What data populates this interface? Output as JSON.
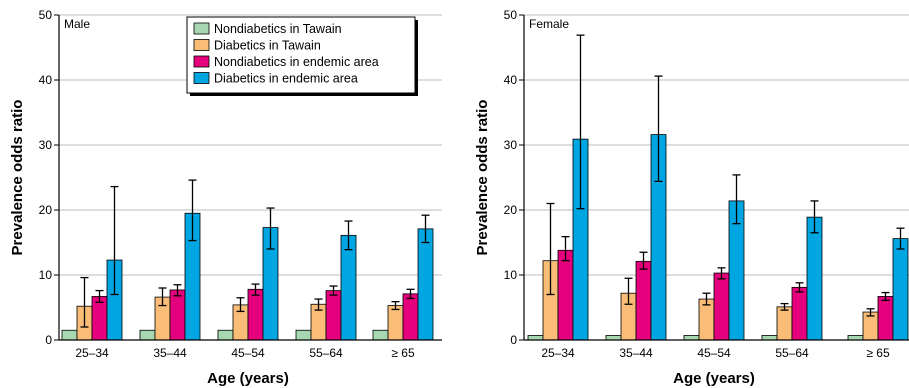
{
  "chart_data": [
    {
      "type": "bar",
      "title": "Male",
      "xlabel": "Age (years)",
      "ylabel": "Prevalence odds ratio",
      "ylim": [
        0,
        50
      ],
      "yticks": [
        0,
        10,
        20,
        30,
        40,
        50
      ],
      "grid": true,
      "legend_position": "top-right",
      "categories": [
        "25–34",
        "35–44",
        "45–54",
        "55–64",
        "≥ 65"
      ],
      "series": [
        {
          "name": "Nondiabetics in Tawain",
          "color": "#a7d8b1",
          "values": [
            1.5,
            1.5,
            1.5,
            1.5,
            1.5
          ],
          "err_low": [
            null,
            null,
            null,
            null,
            null
          ],
          "err_high": [
            null,
            null,
            null,
            null,
            null
          ]
        },
        {
          "name": "Diabetics in Tawain",
          "color": "#f9bd78",
          "values": [
            5.2,
            6.6,
            5.4,
            5.5,
            5.3
          ],
          "err_low": [
            2.0,
            5.3,
            4.4,
            4.6,
            4.7
          ],
          "err_high": [
            9.6,
            8.0,
            6.5,
            6.3,
            5.9
          ]
        },
        {
          "name": "Nondiabetics in endemic area",
          "color": "#e4007c",
          "values": [
            6.7,
            7.7,
            7.8,
            7.6,
            7.1
          ],
          "err_low": [
            5.8,
            6.8,
            6.9,
            6.9,
            6.4
          ],
          "err_high": [
            7.6,
            8.5,
            8.6,
            8.3,
            7.8
          ]
        },
        {
          "name": "Diabetics in endemic area",
          "color": "#00a6e2",
          "values": [
            12.3,
            19.5,
            17.3,
            16.1,
            17.1
          ],
          "err_low": [
            7.0,
            15.3,
            14.0,
            13.9,
            15.0
          ],
          "err_high": [
            23.6,
            24.6,
            20.3,
            18.3,
            19.2
          ]
        }
      ]
    },
    {
      "type": "bar",
      "title": "Female",
      "xlabel": "Age (years)",
      "ylabel": "Prevalence odds ratio",
      "ylim": [
        0,
        50
      ],
      "yticks": [
        0,
        10,
        20,
        30,
        40,
        50
      ],
      "grid": true,
      "categories": [
        "25–34",
        "35–44",
        "45–54",
        "55–64",
        "≥ 65"
      ],
      "series": [
        {
          "name": "Nondiabetics in Tawain",
          "color": "#a7d8b1",
          "values": [
            0.7,
            0.7,
            0.7,
            0.7,
            0.7
          ],
          "err_low": [
            null,
            null,
            null,
            null,
            null
          ],
          "err_high": [
            null,
            null,
            null,
            null,
            null
          ]
        },
        {
          "name": "Diabetics in Tawain",
          "color": "#f9bd78",
          "values": [
            12.2,
            7.2,
            6.3,
            5.1,
            4.3
          ],
          "err_low": [
            7.0,
            5.5,
            5.4,
            4.6,
            3.7
          ],
          "err_high": [
            21.0,
            9.5,
            7.2,
            5.6,
            4.8
          ]
        },
        {
          "name": "Nondiabetics in endemic area",
          "color": "#e4007c",
          "values": [
            13.8,
            12.1,
            10.3,
            8.1,
            6.7
          ],
          "err_low": [
            12.2,
            10.9,
            9.4,
            7.4,
            6.1
          ],
          "err_high": [
            15.9,
            13.5,
            11.1,
            8.8,
            7.3
          ]
        },
        {
          "name": "Diabetics in endemic area",
          "color": "#00a6e2",
          "values": [
            30.9,
            31.6,
            21.4,
            18.9,
            15.6
          ],
          "err_low": [
            20.2,
            24.4,
            17.9,
            16.5,
            14.0
          ],
          "err_high": [
            46.9,
            40.6,
            25.4,
            21.4,
            17.2
          ]
        }
      ]
    }
  ]
}
